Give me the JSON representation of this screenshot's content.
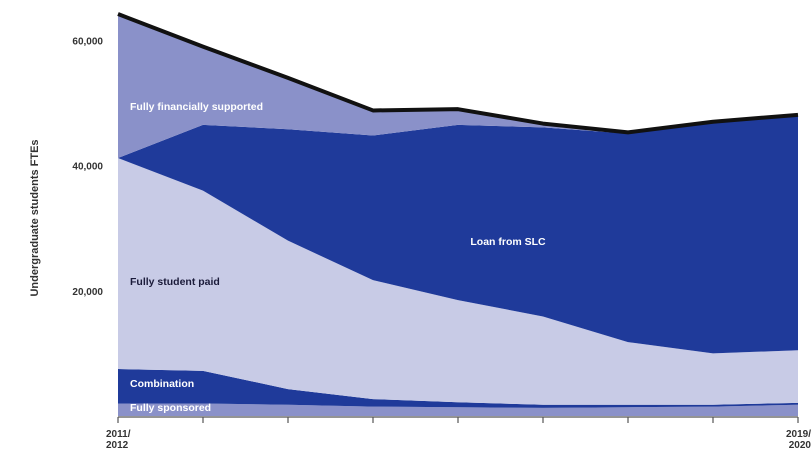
{
  "chart_data": {
    "type": "area",
    "ylabel": "Undergraduate students FTEs",
    "y_ticks": [
      {
        "value": 20000,
        "label": "20,000"
      },
      {
        "value": 40000,
        "label": "40,000"
      },
      {
        "value": 60000,
        "label": "60,000"
      }
    ],
    "ylim": [
      0,
      65000
    ],
    "x_count": 9,
    "x_first_label": [
      "2011/",
      "2012"
    ],
    "x_last_label": [
      "2019/",
      "2020"
    ],
    "series": [
      {
        "name": "Fully sponsored",
        "color": "#8a91c9",
        "values": [
          2000,
          2000,
          1800,
          1500,
          1400,
          1300,
          1400,
          1500,
          1800
        ]
      },
      {
        "name": "Combination",
        "color": "#1f3a9a",
        "values": [
          5500,
          5200,
          2500,
          1200,
          800,
          500,
          400,
          300,
          300
        ]
      },
      {
        "name": "Fully student paid",
        "color": "#c8cbe6",
        "values": [
          33700,
          28800,
          23700,
          19000,
          16300,
          14100,
          10000,
          8200,
          8400
        ]
      },
      {
        "name": "Loan from SLC",
        "color": "#1f3a9a",
        "values": [
          0,
          10500,
          17800,
          23100,
          28000,
          30200,
          33300,
          37000,
          37500
        ]
      },
      {
        "name": "Fully financially supported",
        "color": "#8a91c9",
        "values": [
          23000,
          12500,
          8200,
          4000,
          2500,
          600,
          200,
          0,
          100
        ]
      }
    ],
    "total_line_color": "#111111"
  }
}
